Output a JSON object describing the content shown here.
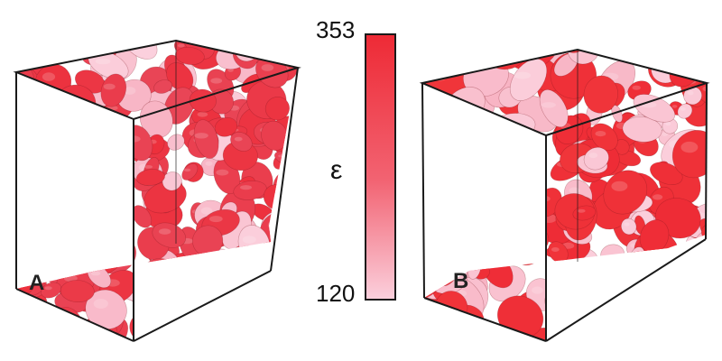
{
  "panels": [
    {
      "id": "A",
      "label": "A",
      "particle_style": "dense oriented ellipsoids"
    },
    {
      "id": "B",
      "label": "B",
      "particle_style": "mixed ellipsoids and spheres"
    }
  ],
  "colorbar": {
    "symbol": "ε",
    "max_label": "353",
    "min_label": "120",
    "max_value": 353,
    "min_value": 120,
    "color_high": "#ee2a35",
    "color_low": "#fbd0dd"
  },
  "colors": {
    "box_edge": "#1a1a1a",
    "panel_a_base": "#e8485a",
    "panel_b_base": "#f0353a",
    "highlight": "#f8b4c4"
  }
}
